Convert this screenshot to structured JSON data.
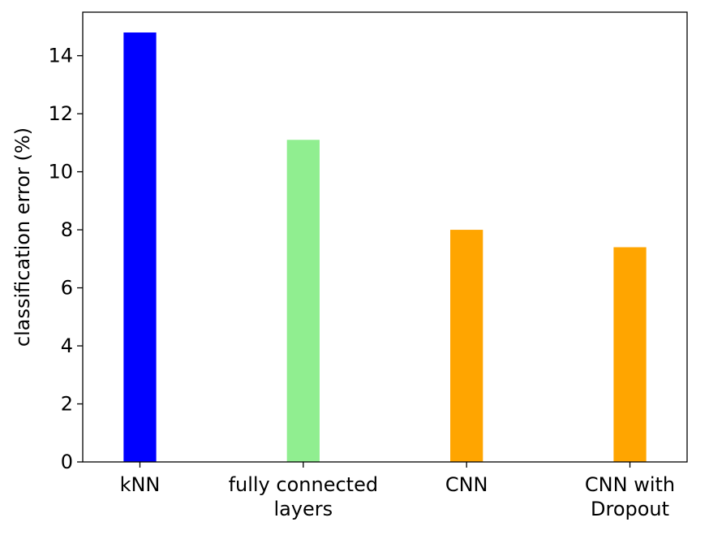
{
  "chart_data": {
    "type": "bar",
    "categories": [
      [
        "kNN"
      ],
      [
        "fully connected",
        "layers"
      ],
      [
        "CNN"
      ],
      [
        "CNN with",
        "Dropout"
      ]
    ],
    "values": [
      14.8,
      11.1,
      8.0,
      7.4
    ],
    "colors": [
      "#0000ff",
      "#90ee90",
      "#ffa500",
      "#ffa500"
    ],
    "ylabel": "classification error (%)",
    "ylim": [
      0,
      15.5
    ],
    "yticks": [
      0,
      2,
      4,
      6,
      8,
      10,
      12,
      14
    ],
    "grid": false,
    "legend": "none"
  }
}
